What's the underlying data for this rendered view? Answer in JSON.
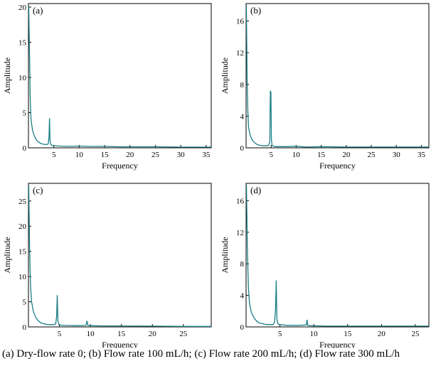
{
  "chart_data": [
    {
      "type": "line",
      "panel_label": "(a)",
      "xlabel": "Frequency",
      "ylabel": "Amplitude",
      "xlim": [
        0,
        36
      ],
      "ylim": [
        0,
        20.5
      ],
      "xticks": [
        5,
        10,
        15,
        20,
        25,
        30,
        35
      ],
      "yticks": [
        0,
        5,
        10,
        15,
        20
      ],
      "color": "#1a7f85",
      "series": [
        {
          "x": [
            0.05,
            0.2,
            0.35,
            0.5,
            0.8,
            1.2,
            1.6,
            2.0,
            2.5,
            3.0,
            3.5,
            3.9,
            4.05,
            4.15,
            4.25,
            4.4,
            4.6,
            5.0,
            6,
            8,
            10,
            12,
            15,
            18,
            20,
            25,
            30,
            35,
            36
          ],
          "y": [
            20.2,
            14.0,
            7.0,
            4.0,
            2.5,
            1.6,
            1.1,
            0.8,
            0.6,
            0.5,
            0.45,
            0.55,
            1.5,
            4.2,
            1.0,
            0.5,
            0.35,
            0.3,
            0.25,
            0.2,
            0.25,
            0.2,
            0.2,
            0.15,
            0.15,
            0.15,
            0.1,
            0.1,
            0.1
          ]
        }
      ]
    },
    {
      "type": "line",
      "panel_label": "(b)",
      "xlabel": "Frequency",
      "ylabel": "Amplitude",
      "xlim": [
        0,
        36.5
      ],
      "ylim": [
        0,
        18.2
      ],
      "xticks": [
        5,
        10,
        15,
        20,
        25,
        30,
        35
      ],
      "yticks": [
        0,
        4,
        8,
        12,
        16
      ],
      "color": "#1a7f85",
      "series": [
        {
          "x": [
            0.05,
            0.2,
            0.35,
            0.5,
            0.8,
            1.2,
            1.6,
            2.0,
            2.5,
            3.0,
            3.5,
            4.0,
            4.5,
            4.75,
            4.85,
            4.95,
            5.05,
            5.2,
            5.5,
            6,
            8,
            10,
            12,
            15,
            20,
            25,
            30,
            35,
            36.5
          ],
          "y": [
            18.0,
            9.0,
            4.5,
            2.6,
            1.6,
            1.0,
            0.7,
            0.5,
            0.35,
            0.3,
            0.25,
            0.25,
            0.3,
            0.8,
            7.2,
            7.0,
            1.0,
            0.3,
            0.2,
            0.15,
            0.15,
            0.2,
            0.1,
            0.15,
            0.1,
            0.1,
            0.1,
            0.1,
            0.1
          ]
        }
      ]
    },
    {
      "type": "line",
      "panel_label": "(c)",
      "xlabel": "Frequency",
      "ylabel": "Amplitude",
      "xlim": [
        0,
        29.5
      ],
      "ylim": [
        0,
        28.5
      ],
      "xticks": [
        5,
        10,
        15,
        20,
        25
      ],
      "yticks": [
        0,
        5,
        10,
        15,
        20,
        25
      ],
      "color": "#1a7f85",
      "series": [
        {
          "x": [
            0.05,
            0.2,
            0.35,
            0.5,
            0.8,
            1.2,
            1.6,
            2.0,
            2.5,
            3.0,
            3.5,
            4.0,
            4.4,
            4.55,
            4.65,
            4.75,
            4.9,
            5.2,
            6,
            8,
            9.3,
            9.45,
            9.6,
            10,
            12,
            14,
            15,
            20,
            25,
            29.5
          ],
          "y": [
            28.0,
            15.0,
            8.0,
            5.0,
            3.0,
            1.8,
            1.2,
            0.8,
            0.6,
            0.5,
            0.45,
            0.45,
            0.6,
            2.0,
            6.3,
            1.2,
            0.5,
            0.35,
            0.3,
            0.25,
            0.3,
            1.2,
            0.3,
            0.25,
            0.2,
            0.2,
            0.2,
            0.15,
            0.1,
            0.1
          ]
        }
      ]
    },
    {
      "type": "line",
      "panel_label": "(d)",
      "xlabel": "Frequency",
      "ylabel": "Amplitude",
      "xlim": [
        0,
        27
      ],
      "ylim": [
        0,
        18.2
      ],
      "xticks": [
        5,
        10,
        15,
        20,
        25
      ],
      "yticks": [
        0,
        4,
        8,
        12,
        16
      ],
      "color": "#1a7f85",
      "series": [
        {
          "x": [
            0.05,
            0.2,
            0.35,
            0.5,
            0.8,
            1.2,
            1.6,
            2.0,
            2.5,
            3.0,
            3.5,
            4.0,
            4.2,
            4.35,
            4.45,
            4.55,
            4.7,
            5.0,
            6,
            8,
            8.9,
            9.0,
            9.1,
            9.5,
            12,
            15,
            20,
            25,
            27
          ],
          "y": [
            18.0,
            9.5,
            5.0,
            3.0,
            1.8,
            1.1,
            0.7,
            0.5,
            0.4,
            0.3,
            0.3,
            0.3,
            0.6,
            2.2,
            5.9,
            1.0,
            0.4,
            0.3,
            0.2,
            0.2,
            0.25,
            0.9,
            0.2,
            0.15,
            0.1,
            0.1,
            0.1,
            0.1,
            0.1
          ]
        }
      ]
    }
  ],
  "caption": "(a) Dry-flow rate 0; (b) Flow rate 100 mL/h; (c) Flow rate 200 mL/h; (d) Flow rate 300 mL/h"
}
